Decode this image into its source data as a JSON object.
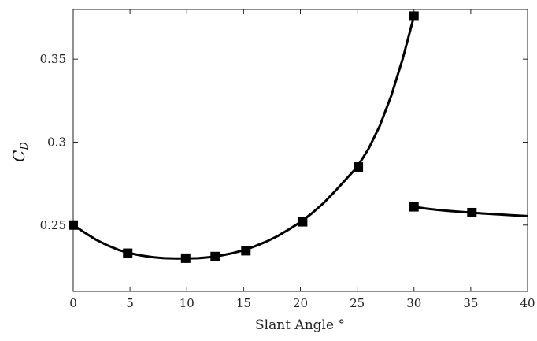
{
  "chart_data": {
    "type": "line",
    "title": "",
    "xlabel": "Slant Angle °",
    "ylabel": {
      "main": "C",
      "sub": "D"
    },
    "xlim": [
      0,
      40
    ],
    "ylim": [
      0.21,
      0.38
    ],
    "x_ticks": [
      0,
      5,
      10,
      15,
      20,
      25,
      30,
      35,
      40
    ],
    "x_tick_labels": [
      "0",
      "5",
      "10",
      "15",
      "20",
      "25",
      "30",
      "35",
      "40"
    ],
    "y_ticks": [
      0.25,
      0.3,
      0.35
    ],
    "y_tick_labels": [
      "0.25",
      "0.3",
      "0.35"
    ],
    "grid": false,
    "legend": "none",
    "series": [
      {
        "marker": "square",
        "color": "#000000",
        "points": [
          [
            0,
            0.25
          ],
          [
            4.8,
            0.233
          ],
          [
            9.9,
            0.23
          ],
          [
            12.5,
            0.231
          ],
          [
            15.2,
            0.2345
          ],
          [
            20.2,
            0.252
          ],
          [
            25.1,
            0.285
          ],
          [
            30.0,
            0.376
          ]
        ],
        "curve": [
          [
            0,
            0.25
          ],
          [
            1,
            0.2455
          ],
          [
            2,
            0.2412
          ],
          [
            3,
            0.2378
          ],
          [
            4,
            0.235
          ],
          [
            5,
            0.233
          ],
          [
            6,
            0.2316
          ],
          [
            7,
            0.2306
          ],
          [
            8,
            0.23
          ],
          [
            9,
            0.2298
          ],
          [
            10,
            0.2298
          ],
          [
            11,
            0.23
          ],
          [
            12,
            0.2306
          ],
          [
            13,
            0.2316
          ],
          [
            14,
            0.233
          ],
          [
            15,
            0.2348
          ],
          [
            16,
            0.2372
          ],
          [
            17,
            0.24
          ],
          [
            18,
            0.2434
          ],
          [
            19,
            0.2474
          ],
          [
            20,
            0.2518
          ],
          [
            21,
            0.257
          ],
          [
            22,
            0.263
          ],
          [
            23,
            0.27
          ],
          [
            24,
            0.2775
          ],
          [
            25,
            0.285
          ],
          [
            26,
            0.296
          ],
          [
            27,
            0.31
          ],
          [
            28,
            0.328
          ],
          [
            29,
            0.35
          ],
          [
            30,
            0.376
          ]
        ]
      },
      {
        "marker": "square",
        "color": "#000000",
        "points": [
          [
            30.0,
            0.261
          ],
          [
            35.1,
            0.2575
          ]
        ],
        "curve": [
          [
            30,
            0.261
          ],
          [
            31,
            0.26
          ],
          [
            32,
            0.2592
          ],
          [
            33,
            0.2586
          ],
          [
            34,
            0.258
          ],
          [
            35,
            0.2575
          ],
          [
            36,
            0.257
          ],
          [
            37,
            0.2566
          ],
          [
            38,
            0.2562
          ],
          [
            39,
            0.2558
          ],
          [
            40,
            0.2554
          ]
        ]
      }
    ]
  }
}
